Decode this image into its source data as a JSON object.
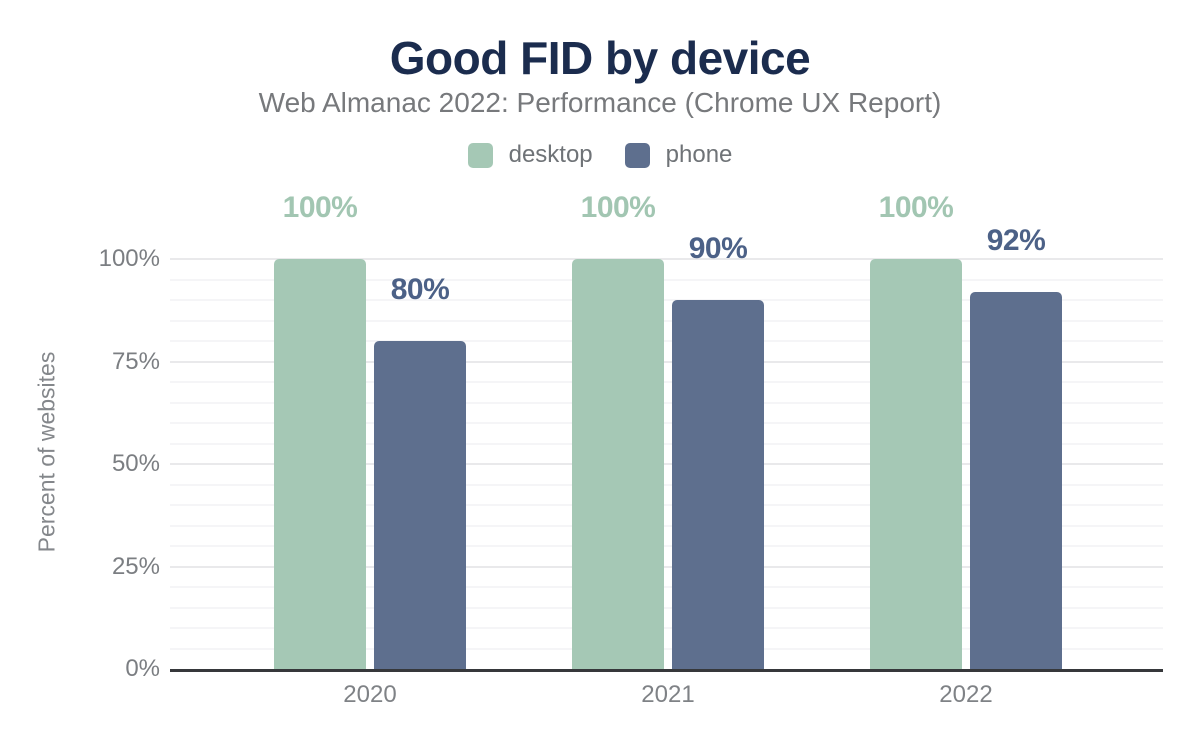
{
  "page": {
    "background": "#ffffff"
  },
  "chart_data": {
    "type": "bar",
    "title": "Good FID by device",
    "subtitle": "Web Almanac 2022: Performance (Chrome UX Report)",
    "ylabel": "Percent of websites",
    "xlabel": "",
    "categories": [
      "2020",
      "2021",
      "2022"
    ],
    "series": [
      {
        "name": "desktop",
        "values": [
          100,
          100,
          100
        ],
        "labels": [
          "100%",
          "100%",
          "100%"
        ],
        "color": "#a5c8b5",
        "label_color": "#a2c6b2"
      },
      {
        "name": "phone",
        "values": [
          80,
          90,
          92
        ],
        "labels": [
          "80%",
          "90%",
          "92%"
        ],
        "color": "#5e6f8e",
        "label_color": "#4c6187"
      }
    ],
    "ylim": [
      0,
      100
    ],
    "yticks": [
      {
        "label": "0%",
        "value": 0
      },
      {
        "label": "25%",
        "value": 25
      },
      {
        "label": "50%",
        "value": 50
      },
      {
        "label": "75%",
        "value": 75
      },
      {
        "label": "100%",
        "value": 100
      }
    ],
    "grid": {
      "minor_step": 5,
      "major_step": 25,
      "visible": true
    },
    "legend_position": "top",
    "colors": {
      "title": "#1b2c4e",
      "subtitle": "#77797c",
      "legend_text": "#6f7377",
      "axis_text": "#7b7e82",
      "axis_line": "#36383b",
      "major_grid": "#e9e9eb",
      "minor_grid": "#f5f5f7"
    }
  }
}
